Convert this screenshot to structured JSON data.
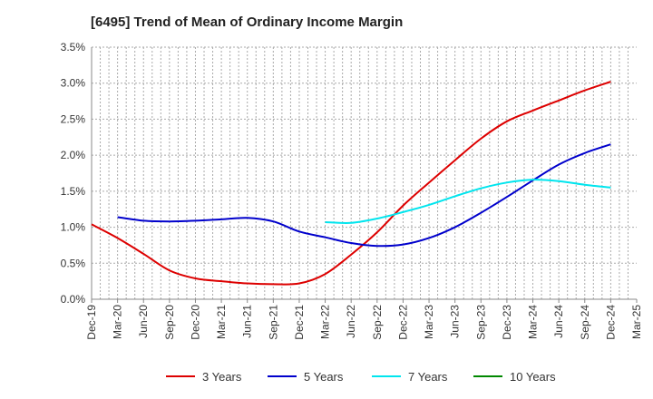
{
  "chart_data": {
    "type": "line",
    "title": "[6495]  Trend of Mean of Ordinary Income Margin",
    "xlabel": "",
    "ylabel": "",
    "ylim": [
      0,
      3.5
    ],
    "yticks": [
      "0.0%",
      "0.5%",
      "1.0%",
      "1.5%",
      "2.0%",
      "2.5%",
      "3.0%",
      "3.5%"
    ],
    "categories": [
      "Dec-19",
      "Mar-20",
      "Jun-20",
      "Sep-20",
      "Dec-20",
      "Mar-21",
      "Jun-21",
      "Sep-21",
      "Dec-21",
      "Mar-22",
      "Jun-22",
      "Sep-22",
      "Dec-22",
      "Mar-23",
      "Jun-23",
      "Sep-23",
      "Dec-23",
      "Mar-24",
      "Jun-24",
      "Sep-24",
      "Dec-24",
      "Mar-25"
    ],
    "grid": true,
    "legend_position": "bottom",
    "series": [
      {
        "name": "3 Years",
        "color": "#dd0000",
        "values": [
          1.04,
          0.85,
          0.63,
          0.4,
          0.29,
          0.25,
          0.22,
          0.21,
          0.22,
          0.35,
          0.62,
          0.93,
          1.3,
          1.62,
          1.93,
          2.23,
          2.47,
          2.62,
          2.76,
          2.9,
          3.02,
          null
        ]
      },
      {
        "name": "5 Years",
        "color": "#0000cc",
        "values": [
          null,
          1.14,
          1.09,
          1.08,
          1.09,
          1.11,
          1.13,
          1.08,
          0.94,
          0.86,
          0.78,
          0.74,
          0.76,
          0.85,
          1.0,
          1.2,
          1.42,
          1.65,
          1.87,
          2.03,
          2.15,
          null
        ]
      },
      {
        "name": "7 Years",
        "color": "#00e5ee",
        "values": [
          null,
          null,
          null,
          null,
          null,
          null,
          null,
          null,
          null,
          1.07,
          1.06,
          1.12,
          1.21,
          1.31,
          1.43,
          1.54,
          1.62,
          1.66,
          1.64,
          1.59,
          1.55,
          null
        ]
      },
      {
        "name": "10 Years",
        "color": "#008800",
        "values": [
          null,
          null,
          null,
          null,
          null,
          null,
          null,
          null,
          null,
          null,
          null,
          null,
          null,
          null,
          null,
          null,
          null,
          null,
          null,
          null,
          null,
          null
        ]
      }
    ]
  }
}
